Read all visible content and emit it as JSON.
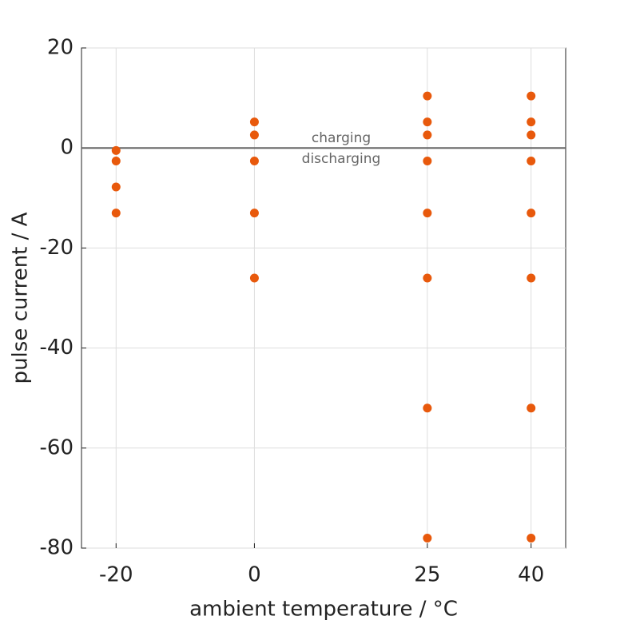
{
  "chart_data": {
    "type": "scatter",
    "x_label": "ambient temperature / °C",
    "y_label": "pulse current / A",
    "x": [
      -20,
      -20,
      -20,
      -20,
      0,
      0,
      0,
      0,
      0,
      25,
      25,
      25,
      25,
      25,
      25,
      25,
      25,
      40,
      40,
      40,
      40,
      40,
      40,
      40,
      40
    ],
    "values": [
      -0.5,
      -2.6,
      -7.8,
      -13,
      5.2,
      2.6,
      -2.6,
      -13,
      -26,
      10.4,
      5.2,
      2.6,
      -2.6,
      -13,
      -26,
      -52,
      -78,
      10.4,
      5.2,
      2.6,
      -2.6,
      -13,
      -26,
      -52,
      -78
    ],
    "color": "#e8590c",
    "xlim": [
      -25,
      45
    ],
    "xticks": [
      -20,
      0,
      25,
      40
    ],
    "ylim": [
      -80,
      20
    ],
    "yticks": [
      -80,
      -60,
      -40,
      -20,
      0,
      20
    ],
    "grid": true,
    "reference_line": 0,
    "annotations": [
      "charging",
      "discharging"
    ]
  }
}
